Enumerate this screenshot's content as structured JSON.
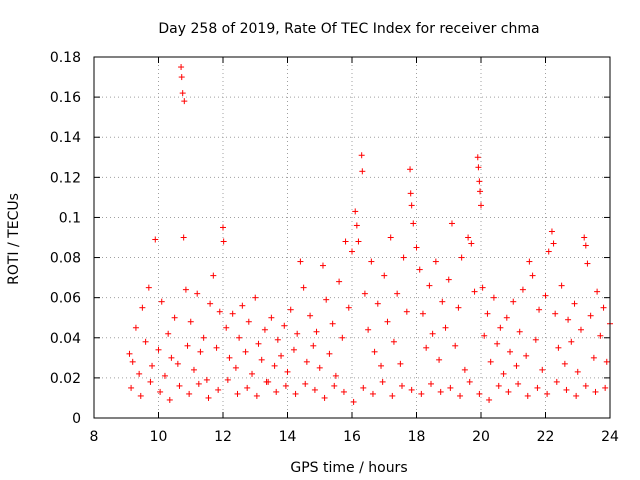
{
  "chart_data": {
    "type": "scatter",
    "title": "Day 258 of 2019, Rate Of TEC Index for receiver chma",
    "xlabel": "GPS time / hours",
    "ylabel": "ROTI / TECUs",
    "xlim": [
      8,
      24
    ],
    "ylim": [
      0,
      0.18
    ],
    "grid": true,
    "marker": "+",
    "color": "#ff0000",
    "xticks": [
      8,
      10,
      12,
      14,
      16,
      18,
      20,
      22,
      24
    ],
    "xtick_labels": [
      "8",
      "10",
      "12",
      "14",
      "16",
      "18",
      "20",
      "22",
      "24"
    ],
    "yticks": [
      0,
      0.02,
      0.04,
      0.06,
      0.08,
      0.1,
      0.12,
      0.14,
      0.16,
      0.18
    ],
    "ytick_labels": [
      "0",
      "0.02",
      "0.04",
      "0.06",
      "0.08",
      "0.1",
      "0.12",
      "0.14",
      "0.16",
      "0.18"
    ],
    "series": [
      {
        "name": "ROTI",
        "points": [
          [
            9.1,
            0.032
          ],
          [
            9.2,
            0.028
          ],
          [
            9.3,
            0.045
          ],
          [
            9.4,
            0.022
          ],
          [
            9.5,
            0.055
          ],
          [
            9.6,
            0.038
          ],
          [
            9.7,
            0.065
          ],
          [
            9.8,
            0.026
          ],
          [
            9.9,
            0.089
          ],
          [
            10.0,
            0.034
          ],
          [
            10.1,
            0.058
          ],
          [
            10.2,
            0.021
          ],
          [
            10.3,
            0.042
          ],
          [
            10.4,
            0.03
          ],
          [
            10.5,
            0.05
          ],
          [
            10.6,
            0.027
          ],
          [
            10.7,
            0.175
          ],
          [
            10.72,
            0.17
          ],
          [
            10.75,
            0.162
          ],
          [
            10.8,
            0.158
          ],
          [
            10.78,
            0.09
          ],
          [
            10.85,
            0.064
          ],
          [
            10.9,
            0.036
          ],
          [
            11.0,
            0.048
          ],
          [
            11.1,
            0.024
          ],
          [
            11.2,
            0.062
          ],
          [
            11.3,
            0.033
          ],
          [
            11.4,
            0.04
          ],
          [
            11.5,
            0.019
          ],
          [
            11.6,
            0.057
          ],
          [
            11.7,
            0.071
          ],
          [
            11.8,
            0.035
          ],
          [
            11.9,
            0.053
          ],
          [
            12.0,
            0.095
          ],
          [
            12.02,
            0.088
          ],
          [
            12.1,
            0.045
          ],
          [
            12.2,
            0.03
          ],
          [
            12.3,
            0.052
          ],
          [
            12.4,
            0.025
          ],
          [
            12.5,
            0.04
          ],
          [
            12.6,
            0.056
          ],
          [
            12.7,
            0.033
          ],
          [
            12.8,
            0.048
          ],
          [
            12.9,
            0.022
          ],
          [
            13.0,
            0.06
          ],
          [
            13.1,
            0.037
          ],
          [
            13.2,
            0.029
          ],
          [
            13.3,
            0.044
          ],
          [
            13.4,
            0.018
          ],
          [
            13.5,
            0.05
          ],
          [
            13.6,
            0.026
          ],
          [
            13.7,
            0.039
          ],
          [
            13.8,
            0.031
          ],
          [
            13.9,
            0.046
          ],
          [
            14.0,
            0.023
          ],
          [
            14.1,
            0.054
          ],
          [
            14.2,
            0.034
          ],
          [
            14.3,
            0.042
          ],
          [
            14.4,
            0.078
          ],
          [
            14.5,
            0.065
          ],
          [
            14.6,
            0.028
          ],
          [
            14.7,
            0.051
          ],
          [
            14.8,
            0.036
          ],
          [
            14.9,
            0.043
          ],
          [
            15.0,
            0.025
          ],
          [
            15.1,
            0.076
          ],
          [
            15.2,
            0.059
          ],
          [
            15.3,
            0.032
          ],
          [
            15.4,
            0.047
          ],
          [
            15.5,
            0.021
          ],
          [
            15.6,
            0.068
          ],
          [
            15.7,
            0.04
          ],
          [
            15.8,
            0.088
          ],
          [
            15.9,
            0.055
          ],
          [
            16.0,
            0.083
          ],
          [
            16.1,
            0.103
          ],
          [
            16.15,
            0.096
          ],
          [
            16.2,
            0.088
          ],
          [
            16.3,
            0.131
          ],
          [
            16.32,
            0.123
          ],
          [
            16.4,
            0.062
          ],
          [
            16.5,
            0.044
          ],
          [
            16.6,
            0.078
          ],
          [
            16.7,
            0.033
          ],
          [
            16.8,
            0.057
          ],
          [
            16.9,
            0.026
          ],
          [
            17.0,
            0.071
          ],
          [
            17.1,
            0.048
          ],
          [
            17.2,
            0.09
          ],
          [
            17.3,
            0.038
          ],
          [
            17.4,
            0.062
          ],
          [
            17.5,
            0.027
          ],
          [
            17.6,
            0.08
          ],
          [
            17.7,
            0.053
          ],
          [
            17.8,
            0.124
          ],
          [
            17.82,
            0.112
          ],
          [
            17.85,
            0.106
          ],
          [
            17.9,
            0.097
          ],
          [
            18.0,
            0.085
          ],
          [
            18.1,
            0.074
          ],
          [
            18.2,
            0.052
          ],
          [
            18.3,
            0.035
          ],
          [
            18.4,
            0.066
          ],
          [
            18.5,
            0.042
          ],
          [
            18.6,
            0.078
          ],
          [
            18.7,
            0.029
          ],
          [
            18.8,
            0.058
          ],
          [
            18.9,
            0.045
          ],
          [
            19.0,
            0.069
          ],
          [
            19.1,
            0.097
          ],
          [
            19.2,
            0.036
          ],
          [
            19.3,
            0.055
          ],
          [
            19.4,
            0.08
          ],
          [
            19.5,
            0.024
          ],
          [
            19.6,
            0.09
          ],
          [
            19.7,
            0.087
          ],
          [
            19.8,
            0.063
          ],
          [
            19.9,
            0.13
          ],
          [
            19.92,
            0.125
          ],
          [
            19.95,
            0.118
          ],
          [
            19.97,
            0.113
          ],
          [
            20.0,
            0.106
          ],
          [
            20.05,
            0.065
          ],
          [
            20.1,
            0.041
          ],
          [
            20.2,
            0.052
          ],
          [
            20.3,
            0.028
          ],
          [
            20.4,
            0.06
          ],
          [
            20.5,
            0.037
          ],
          [
            20.6,
            0.045
          ],
          [
            20.7,
            0.022
          ],
          [
            20.8,
            0.05
          ],
          [
            20.9,
            0.033
          ],
          [
            21.0,
            0.058
          ],
          [
            21.1,
            0.026
          ],
          [
            21.2,
            0.043
          ],
          [
            21.3,
            0.064
          ],
          [
            21.4,
            0.031
          ],
          [
            21.5,
            0.078
          ],
          [
            21.6,
            0.071
          ],
          [
            21.7,
            0.039
          ],
          [
            21.8,
            0.054
          ],
          [
            21.9,
            0.024
          ],
          [
            22.0,
            0.061
          ],
          [
            22.1,
            0.083
          ],
          [
            22.2,
            0.093
          ],
          [
            22.25,
            0.087
          ],
          [
            22.3,
            0.052
          ],
          [
            22.4,
            0.035
          ],
          [
            22.5,
            0.066
          ],
          [
            22.6,
            0.027
          ],
          [
            22.7,
            0.049
          ],
          [
            22.8,
            0.038
          ],
          [
            22.9,
            0.057
          ],
          [
            23.0,
            0.023
          ],
          [
            23.1,
            0.044
          ],
          [
            23.2,
            0.09
          ],
          [
            23.25,
            0.086
          ],
          [
            23.3,
            0.077
          ],
          [
            23.4,
            0.051
          ],
          [
            23.5,
            0.03
          ],
          [
            23.6,
            0.063
          ],
          [
            23.7,
            0.041
          ],
          [
            23.8,
            0.055
          ],
          [
            23.9,
            0.028
          ],
          [
            24.0,
            0.047
          ],
          [
            9.15,
            0.015
          ],
          [
            9.45,
            0.011
          ],
          [
            9.75,
            0.018
          ],
          [
            10.05,
            0.013
          ],
          [
            10.35,
            0.009
          ],
          [
            10.65,
            0.016
          ],
          [
            10.95,
            0.012
          ],
          [
            11.25,
            0.017
          ],
          [
            11.55,
            0.01
          ],
          [
            11.85,
            0.014
          ],
          [
            12.15,
            0.019
          ],
          [
            12.45,
            0.012
          ],
          [
            12.75,
            0.015
          ],
          [
            13.05,
            0.011
          ],
          [
            13.35,
            0.018
          ],
          [
            13.65,
            0.013
          ],
          [
            13.95,
            0.016
          ],
          [
            14.25,
            0.012
          ],
          [
            14.55,
            0.017
          ],
          [
            14.85,
            0.014
          ],
          [
            15.15,
            0.01
          ],
          [
            15.45,
            0.016
          ],
          [
            15.75,
            0.013
          ],
          [
            16.05,
            0.008
          ],
          [
            16.35,
            0.015
          ],
          [
            16.65,
            0.012
          ],
          [
            16.95,
            0.018
          ],
          [
            17.25,
            0.011
          ],
          [
            17.55,
            0.016
          ],
          [
            17.85,
            0.014
          ],
          [
            18.15,
            0.012
          ],
          [
            18.45,
            0.017
          ],
          [
            18.75,
            0.013
          ],
          [
            19.05,
            0.015
          ],
          [
            19.35,
            0.011
          ],
          [
            19.65,
            0.018
          ],
          [
            19.95,
            0.012
          ],
          [
            20.25,
            0.009
          ],
          [
            20.55,
            0.016
          ],
          [
            20.85,
            0.013
          ],
          [
            21.15,
            0.017
          ],
          [
            21.45,
            0.011
          ],
          [
            21.75,
            0.015
          ],
          [
            22.05,
            0.012
          ],
          [
            22.35,
            0.018
          ],
          [
            22.65,
            0.014
          ],
          [
            22.95,
            0.011
          ],
          [
            23.25,
            0.016
          ],
          [
            23.55,
            0.013
          ],
          [
            23.85,
            0.015
          ]
        ]
      }
    ]
  }
}
